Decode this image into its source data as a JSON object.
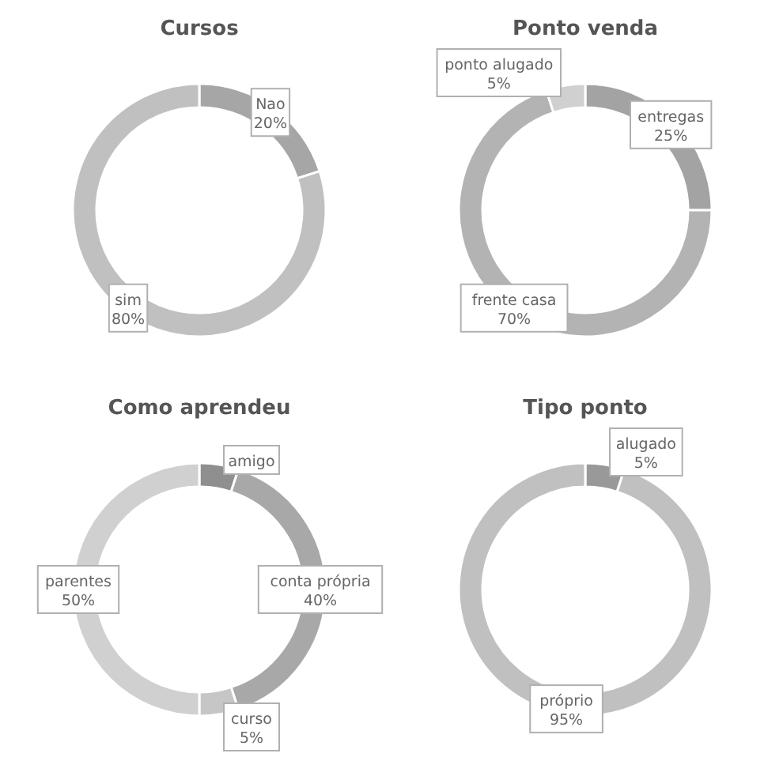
{
  "chart_data": [
    {
      "type": "donut",
      "title": "Cursos",
      "categories": [
        "Nao",
        "sim"
      ],
      "values": [
        20,
        80
      ],
      "colors": [
        "#a6a6a6",
        "#c0c0c0"
      ],
      "value_labels": [
        "20%",
        "80%"
      ]
    },
    {
      "type": "donut",
      "title": "Ponto venda",
      "categories": [
        "entregas",
        "frente casa",
        "ponto alugado"
      ],
      "values": [
        25,
        70,
        5
      ],
      "colors": [
        "#a3a3a3",
        "#b3b3b3",
        "#d0d0d0"
      ],
      "value_labels": [
        "25%",
        "70%",
        "5%"
      ]
    },
    {
      "type": "donut",
      "title": "Como aprendeu",
      "categories": [
        "amigo",
        "conta própria",
        "curso",
        "parentes"
      ],
      "values": [
        5,
        40,
        5,
        50
      ],
      "colors": [
        "#8f8f8f",
        "#a8a8a8",
        "#c6c6c6",
        "#d0d0d0"
      ],
      "value_labels": [
        null,
        "40%",
        "5%",
        "50%"
      ]
    },
    {
      "type": "donut",
      "title": "Tipo ponto",
      "categories": [
        "alugado",
        "próprio"
      ],
      "values": [
        5,
        95
      ],
      "colors": [
        "#999999",
        "#c0c0c0"
      ],
      "value_labels": [
        "5%",
        "95%"
      ]
    }
  ]
}
